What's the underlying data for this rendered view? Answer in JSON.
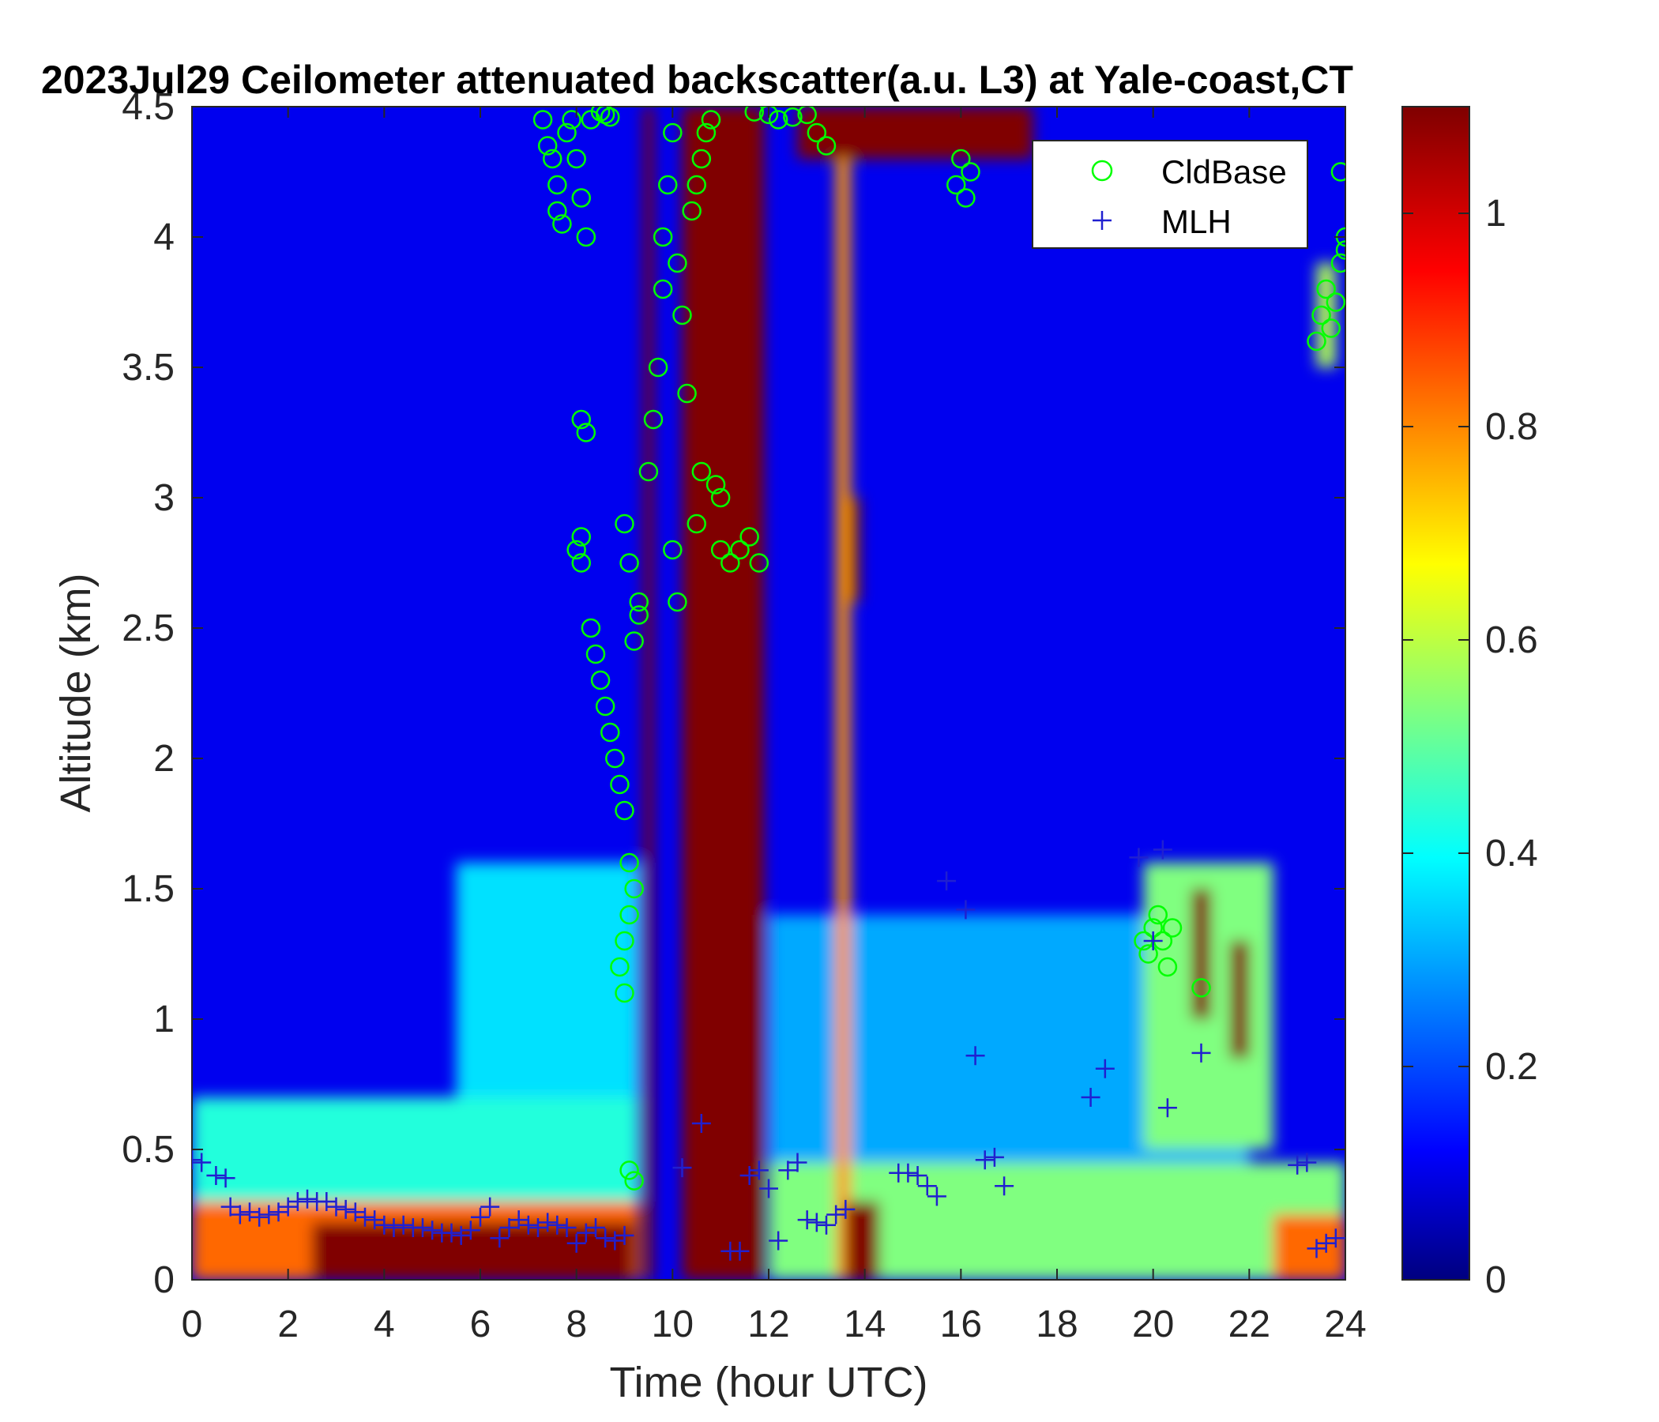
{
  "chart_data": {
    "type": "heatmap",
    "title": "2023Jul29 Ceilometer attenuated backscatter(a.u. L3) at Yale-coast,CT",
    "xlabel": "Time (hour UTC)",
    "ylabel": "Altitude (km)",
    "xlim": [
      0,
      24
    ],
    "ylim": [
      0,
      4.5
    ],
    "xticks": [
      0,
      2,
      4,
      6,
      8,
      10,
      12,
      14,
      16,
      18,
      20,
      22,
      24
    ],
    "yticks": [
      0,
      0.5,
      1,
      1.5,
      2,
      2.5,
      3,
      3.5,
      4,
      4.5
    ],
    "colorbar": {
      "colormap": "jet",
      "range": [
        0,
        1.1
      ],
      "ticks": [
        0,
        0.2,
        0.4,
        0.6,
        0.8,
        1
      ]
    },
    "legend": {
      "position": "top-right",
      "entries": [
        "CldBase",
        "MLH"
      ]
    },
    "background": {
      "base": 0.12,
      "features": [
        {
          "t0": 0,
          "t1": 9.3,
          "z0": 0,
          "z1": 0.3,
          "v": 0.85
        },
        {
          "t0": 2.5,
          "t1": 9.2,
          "z0": 0,
          "z1": 0.22,
          "v": 1.1
        },
        {
          "t0": 0,
          "t1": 9.3,
          "z0": 0.3,
          "z1": 0.7,
          "v": 0.45
        },
        {
          "t0": 5.5,
          "t1": 9.3,
          "z0": 0.7,
          "z1": 1.6,
          "v": 0.38
        },
        {
          "t0": 9.4,
          "t1": 9.6,
          "z0": 0,
          "z1": 4.5,
          "v": 1.1
        },
        {
          "t0": 10.2,
          "t1": 11.9,
          "z0": 0,
          "z1": 4.5,
          "v": 1.1
        },
        {
          "t0": 12,
          "t1": 24,
          "z0": 0,
          "z1": 0.45,
          "v": 0.55
        },
        {
          "t0": 12,
          "t1": 22,
          "z0": 0.45,
          "z1": 1.4,
          "v": 0.32
        },
        {
          "t0": 13.4,
          "t1": 13.7,
          "z0": 0,
          "z1": 4.3,
          "v": 0.8
        },
        {
          "t0": 13.6,
          "t1": 14.3,
          "z0": 0,
          "z1": 0.3,
          "v": 1.1
        },
        {
          "t0": 13.7,
          "t1": 13.9,
          "z0": 2.6,
          "z1": 3.0,
          "v": 1.1
        },
        {
          "t0": 12.6,
          "t1": 17.5,
          "z0": 4.3,
          "z1": 4.5,
          "v": 1.1
        },
        {
          "t0": 19.8,
          "t1": 22.5,
          "z0": 0.5,
          "z1": 1.6,
          "v": 0.55
        },
        {
          "t0": 20.8,
          "t1": 21.2,
          "z0": 1.0,
          "z1": 1.5,
          "v": 1.1
        },
        {
          "t0": 21.6,
          "t1": 22.0,
          "z0": 0.85,
          "z1": 1.3,
          "v": 1.1
        },
        {
          "t0": 22.5,
          "t1": 24,
          "z0": 0,
          "z1": 0.25,
          "v": 0.85
        },
        {
          "t0": 23.4,
          "t1": 23.8,
          "z0": 3.5,
          "z1": 3.9,
          "v": 0.6
        }
      ]
    },
    "series": [
      {
        "name": "CldBase",
        "marker": "circle",
        "color": "#00ff00",
        "x": [
          7.3,
          7.4,
          7.5,
          7.6,
          7.6,
          7.7,
          7.8,
          7.9,
          8.0,
          8.1,
          8.2,
          8.3,
          8.5,
          8.6,
          8.7,
          8.1,
          8.2,
          8.1,
          8.0,
          8.1,
          8.3,
          8.4,
          8.5,
          8.6,
          8.7,
          8.8,
          8.9,
          9.0,
          9.1,
          9.2,
          9.1,
          9.0,
          8.9,
          9.0,
          9.1,
          9.2,
          9.3,
          9.2,
          9.0,
          9.1,
          9.3,
          9.5,
          9.6,
          9.7,
          9.8,
          9.8,
          9.9,
          10.0,
          10.1,
          10.2,
          10.3,
          10.4,
          10.5,
          10.6,
          10.7,
          10.8,
          10.9,
          11.0,
          10.0,
          10.1,
          10.5,
          10.6,
          11.0,
          11.2,
          11.4,
          11.6,
          11.8,
          11.7,
          12.0,
          12.2,
          12.5,
          12.8,
          13.0,
          13.2,
          16.0,
          16.2,
          15.9,
          16.1,
          19.8,
          19.9,
          20.0,
          20.1,
          20.2,
          20.3,
          20.4,
          21.0,
          23.4,
          23.5,
          23.6,
          23.7,
          23.8,
          23.9,
          24.0,
          23.9,
          24.0
        ],
        "y": [
          4.45,
          4.35,
          4.3,
          4.2,
          4.1,
          4.05,
          4.4,
          4.45,
          4.3,
          4.15,
          4.0,
          4.45,
          4.48,
          4.47,
          4.46,
          3.3,
          3.25,
          2.85,
          2.8,
          2.75,
          2.5,
          2.4,
          2.3,
          2.2,
          2.1,
          2.0,
          1.9,
          1.8,
          1.6,
          1.5,
          1.4,
          1.3,
          1.2,
          1.1,
          0.42,
          0.38,
          2.6,
          2.45,
          2.9,
          2.75,
          2.55,
          3.1,
          3.3,
          3.5,
          3.8,
          4.0,
          4.2,
          4.4,
          3.9,
          3.7,
          3.4,
          4.1,
          4.2,
          4.3,
          4.4,
          4.45,
          3.05,
          3.0,
          2.8,
          2.6,
          2.9,
          3.1,
          2.8,
          2.75,
          2.8,
          2.85,
          2.75,
          4.48,
          4.47,
          4.45,
          4.46,
          4.47,
          4.4,
          4.35,
          4.3,
          4.25,
          4.2,
          4.15,
          1.3,
          1.25,
          1.35,
          1.4,
          1.3,
          1.2,
          1.35,
          1.12,
          3.6,
          3.7,
          3.8,
          3.65,
          3.75,
          4.25,
          4.0,
          3.9,
          3.95
        ]
      },
      {
        "name": "MLH",
        "marker": "plus",
        "color": "#2020d0",
        "x": [
          0.0,
          0.2,
          0.5,
          0.7,
          0.8,
          1.0,
          1.2,
          1.4,
          1.6,
          1.8,
          2.0,
          2.2,
          2.4,
          2.6,
          2.8,
          3.0,
          3.2,
          3.4,
          3.6,
          3.8,
          4.0,
          4.2,
          4.4,
          4.6,
          4.8,
          5.0,
          5.2,
          5.4,
          5.6,
          5.8,
          6.0,
          6.2,
          6.4,
          6.6,
          6.8,
          7.0,
          7.2,
          7.4,
          7.6,
          7.8,
          8.0,
          8.2,
          8.4,
          8.6,
          8.8,
          9.0,
          10.2,
          10.6,
          11.2,
          11.4,
          11.6,
          11.8,
          12.0,
          12.2,
          12.4,
          12.6,
          12.8,
          13.0,
          13.2,
          13.4,
          13.6,
          14.7,
          14.9,
          15.1,
          15.3,
          15.5,
          15.7,
          16.1,
          16.5,
          16.7,
          16.9,
          16.3,
          18.7,
          19.0,
          19.7,
          20.0,
          20.2,
          20.3,
          21.0,
          23.0,
          23.2,
          23.4,
          23.6,
          23.8
        ],
        "y": [
          0.46,
          0.45,
          0.4,
          0.39,
          0.28,
          0.25,
          0.26,
          0.24,
          0.25,
          0.26,
          0.28,
          0.3,
          0.31,
          0.3,
          0.3,
          0.28,
          0.27,
          0.26,
          0.24,
          0.23,
          0.21,
          0.2,
          0.21,
          0.2,
          0.2,
          0.19,
          0.18,
          0.18,
          0.17,
          0.19,
          0.24,
          0.28,
          0.16,
          0.2,
          0.23,
          0.21,
          0.2,
          0.22,
          0.21,
          0.2,
          0.14,
          0.18,
          0.2,
          0.16,
          0.15,
          0.17,
          0.43,
          0.6,
          0.11,
          0.11,
          0.4,
          0.42,
          0.35,
          0.15,
          0.42,
          0.45,
          0.23,
          0.22,
          0.21,
          0.25,
          0.27,
          0.41,
          0.41,
          0.4,
          0.36,
          0.32,
          1.53,
          1.42,
          0.46,
          0.47,
          0.36,
          0.86,
          0.7,
          0.81,
          1.62,
          1.3,
          1.65,
          0.66,
          0.87,
          0.44,
          0.45,
          0.12,
          0.14,
          0.16
        ]
      }
    ]
  }
}
